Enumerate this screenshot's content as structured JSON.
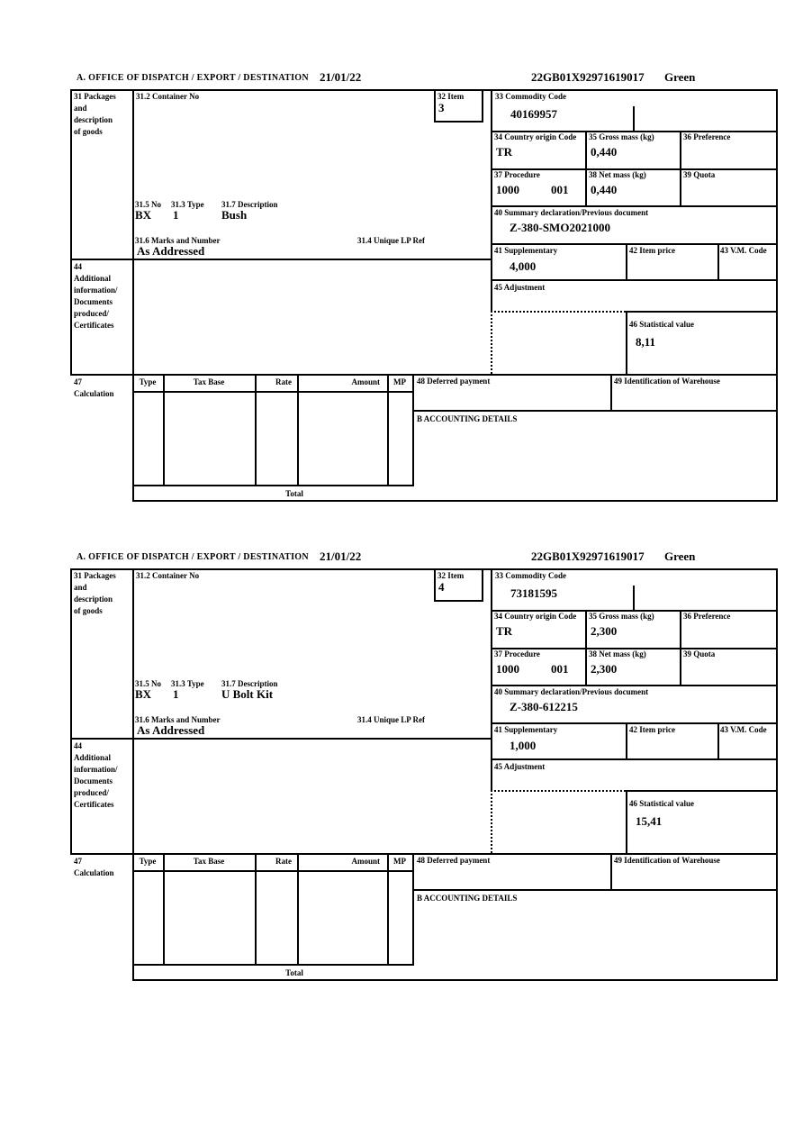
{
  "labels": {
    "office": "A.  OFFICE OF DISPATCH / EXPORT / DESTINATION",
    "box31": [
      "31 Packages",
      "and",
      "description",
      "of goods"
    ],
    "container_no": "31.2 Container No",
    "item": "32 Item",
    "commodity": "33 Commodity Code",
    "country_origin": "34 Country origin Code",
    "gross_mass": "35 Gross mass (kg)",
    "preference": "36 Preference",
    "procedure": "37 Procedure",
    "net_mass": "38 Net mass (kg)",
    "quota": "39 Quota",
    "summary_declaration": "40 Summary declaration/Previous document",
    "supplementary": "41 Supplementary",
    "item_price": "42 Item price",
    "vm_code": "43 V.M. Code",
    "no_315": "31.5 No",
    "type_313": "31.3 Type",
    "description_317": "31.7 Description",
    "marks_316": "31.6 Marks and Number",
    "lp_ref_314": "31.4 Unique LP Ref",
    "box44": [
      "44",
      "Additional",
      "information/",
      "Documents",
      "produced/",
      "Certificates"
    ],
    "adjustment": "45 Adjustment",
    "statistical_value": "46 Statistical value",
    "box47": [
      "47",
      "Calculation"
    ],
    "col_type": "Type",
    "col_tax_base": "Tax Base",
    "col_rate": "Rate",
    "col_amount": "Amount",
    "col_mp": "MP",
    "deferred_payment": "48 Deferred payment",
    "warehouse": "49 Identification of Warehouse",
    "accounting": "B ACCOUNTING DETAILS",
    "total": "Total"
  },
  "forms": [
    {
      "date": "21/01/22",
      "reference": "22GB01X92971619017",
      "routing": "Green",
      "item_no": "3",
      "commodity_code": "40169957",
      "country_origin": "TR",
      "gross_mass": "0,440",
      "procedure_1": "1000",
      "procedure_2": "001",
      "net_mass": "0,440",
      "summary_declaration": "Z-380-SMO2021000",
      "supplementary": "4,000",
      "package_code": "BX",
      "package_count": "1",
      "goods_description": "Bush",
      "marks_numbers": "As Addressed",
      "statistical_value": "8,11"
    },
    {
      "date": "21/01/22",
      "reference": "22GB01X92971619017",
      "routing": "Green",
      "item_no": "4",
      "commodity_code": "73181595",
      "country_origin": "TR",
      "gross_mass": "2,300",
      "procedure_1": "1000",
      "procedure_2": "001",
      "net_mass": "2,300",
      "summary_declaration": "Z-380-612215",
      "supplementary": "1,000",
      "package_code": "BX",
      "package_count": "1",
      "goods_description": "U Bolt Kit",
      "marks_numbers": "As Addressed",
      "statistical_value": "15,41"
    }
  ]
}
